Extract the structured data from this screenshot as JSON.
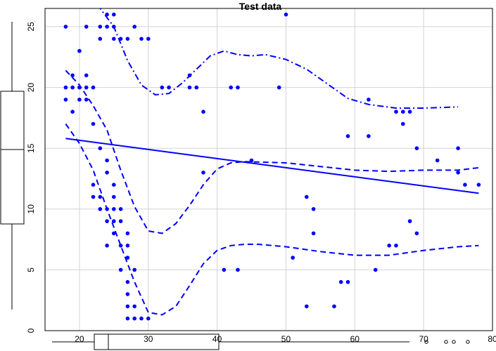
{
  "chart_data": {
    "type": "scatter",
    "title": "Test data",
    "xlabel": "",
    "ylabel": "",
    "xlim": [
      15,
      80
    ],
    "ylim": [
      0,
      26.5
    ],
    "x_ticks": [
      20,
      30,
      40,
      50,
      60,
      70,
      80
    ],
    "y_ticks": [
      0,
      5,
      10,
      15,
      20,
      25
    ],
    "x_tick_labels": [
      "20",
      "30",
      "40",
      "50",
      "60",
      "70",
      "80"
    ],
    "y_tick_labels": [
      "0",
      "5",
      "10",
      "15",
      "20",
      "25"
    ],
    "grid": true,
    "point_color": "#0000ff",
    "points": [
      [
        18,
        25
      ],
      [
        18,
        20
      ],
      [
        18,
        19
      ],
      [
        19,
        21
      ],
      [
        19,
        20
      ],
      [
        19,
        18
      ],
      [
        20,
        23
      ],
      [
        20,
        20
      ],
      [
        20,
        19
      ],
      [
        21,
        25
      ],
      [
        21,
        21
      ],
      [
        21,
        20
      ],
      [
        21,
        19
      ],
      [
        22,
        20
      ],
      [
        22,
        17
      ],
      [
        22,
        12
      ],
      [
        22,
        11
      ],
      [
        23,
        25
      ],
      [
        23,
        24
      ],
      [
        23,
        15
      ],
      [
        23,
        11
      ],
      [
        23,
        10
      ],
      [
        24,
        26
      ],
      [
        24,
        25
      ],
      [
        24,
        14
      ],
      [
        24,
        13
      ],
      [
        24,
        10
      ],
      [
        24,
        9
      ],
      [
        24,
        7
      ],
      [
        25,
        26
      ],
      [
        25,
        25
      ],
      [
        25,
        24
      ],
      [
        25,
        12
      ],
      [
        25,
        11
      ],
      [
        25,
        10
      ],
      [
        25,
        9
      ],
      [
        25,
        8
      ],
      [
        26,
        24
      ],
      [
        26,
        10
      ],
      [
        26,
        9
      ],
      [
        26,
        7
      ],
      [
        26,
        5
      ],
      [
        27,
        24
      ],
      [
        27,
        8
      ],
      [
        27,
        7
      ],
      [
        27,
        6
      ],
      [
        27,
        4
      ],
      [
        27,
        3
      ],
      [
        27,
        2
      ],
      [
        27,
        1
      ],
      [
        28,
        25
      ],
      [
        28,
        5
      ],
      [
        28,
        2
      ],
      [
        28,
        1
      ],
      [
        29,
        24
      ],
      [
        29,
        1
      ],
      [
        30,
        24
      ],
      [
        30,
        1
      ],
      [
        32,
        20
      ],
      [
        33,
        20
      ],
      [
        36,
        21
      ],
      [
        36,
        20
      ],
      [
        37,
        20
      ],
      [
        38,
        18
      ],
      [
        38,
        13
      ],
      [
        41,
        5
      ],
      [
        42,
        20
      ],
      [
        43,
        20
      ],
      [
        43,
        5
      ],
      [
        45,
        14
      ],
      [
        49,
        20
      ],
      [
        50,
        26
      ],
      [
        51,
        6
      ],
      [
        53,
        11
      ],
      [
        53,
        2
      ],
      [
        54,
        10
      ],
      [
        54,
        8
      ],
      [
        57,
        2
      ],
      [
        58,
        4
      ],
      [
        59,
        16
      ],
      [
        59,
        4
      ],
      [
        62,
        19
      ],
      [
        62,
        16
      ],
      [
        63,
        5
      ],
      [
        65,
        7
      ],
      [
        66,
        7
      ],
      [
        66,
        18
      ],
      [
        67,
        18
      ],
      [
        67,
        17
      ],
      [
        68,
        18
      ],
      [
        68,
        9
      ],
      [
        69,
        15
      ],
      [
        69,
        8
      ],
      [
        72,
        14
      ],
      [
        75,
        15
      ],
      [
        75,
        13
      ],
      [
        76,
        12
      ],
      [
        78,
        12
      ]
    ],
    "series": [
      {
        "line_style": "solid",
        "color": "#0000ff",
        "points": [
          [
            18,
            15.8
          ],
          [
            78,
            11.3
          ]
        ]
      },
      {
        "line_style": "dashed",
        "color": "#0000ff",
        "points": [
          [
            18,
            21.4
          ],
          [
            20,
            20.2
          ],
          [
            22,
            18.5
          ],
          [
            24,
            16.5
          ],
          [
            26,
            13.2
          ],
          [
            28,
            10.2
          ],
          [
            30,
            8.2
          ],
          [
            32,
            8
          ],
          [
            34,
            8.8
          ],
          [
            36,
            10.3
          ],
          [
            38,
            12
          ],
          [
            40,
            13.3
          ],
          [
            42,
            13.8
          ],
          [
            44,
            13.9
          ],
          [
            50,
            13.8
          ],
          [
            55,
            13.5
          ],
          [
            60,
            13.2
          ],
          [
            65,
            13.1
          ],
          [
            70,
            13.2
          ],
          [
            75,
            13.2
          ],
          [
            78,
            13.4
          ]
        ]
      },
      {
        "line_style": "dashed",
        "color": "#0000ff",
        "points": [
          [
            18,
            17
          ],
          [
            20,
            15.4
          ],
          [
            22,
            13.2
          ],
          [
            24,
            10
          ],
          [
            26,
            7
          ],
          [
            28,
            4
          ],
          [
            30,
            1.5
          ],
          [
            32,
            1.3
          ],
          [
            34,
            2
          ],
          [
            36,
            3.7
          ],
          [
            38,
            5.5
          ],
          [
            40,
            6.6
          ],
          [
            42,
            7
          ],
          [
            44,
            7.1
          ],
          [
            46,
            7.1
          ],
          [
            50,
            6.9
          ],
          [
            55,
            6.5
          ],
          [
            60,
            6.2
          ],
          [
            65,
            6.2
          ],
          [
            70,
            6.6
          ],
          [
            75,
            6.9
          ],
          [
            78,
            7
          ]
        ]
      },
      {
        "line_style": "dashdot",
        "color": "#0000ff",
        "points": [
          [
            21,
            27.5
          ],
          [
            23,
            26.5
          ],
          [
            25,
            25
          ],
          [
            27,
            22.2
          ],
          [
            29,
            20.2
          ],
          [
            31,
            19.4
          ],
          [
            33,
            19.5
          ],
          [
            35,
            20.4
          ],
          [
            37,
            21.5
          ],
          [
            39,
            22.6
          ],
          [
            41,
            23
          ],
          [
            43,
            22.7
          ],
          [
            45,
            22.6
          ],
          [
            47,
            22.7
          ],
          [
            50,
            22.3
          ],
          [
            53,
            21.5
          ],
          [
            56,
            20.3
          ],
          [
            59,
            19.1
          ],
          [
            62,
            18.6
          ],
          [
            66,
            18.3
          ],
          [
            70,
            18.3
          ],
          [
            75,
            18.4
          ]
        ]
      }
    ]
  }
}
